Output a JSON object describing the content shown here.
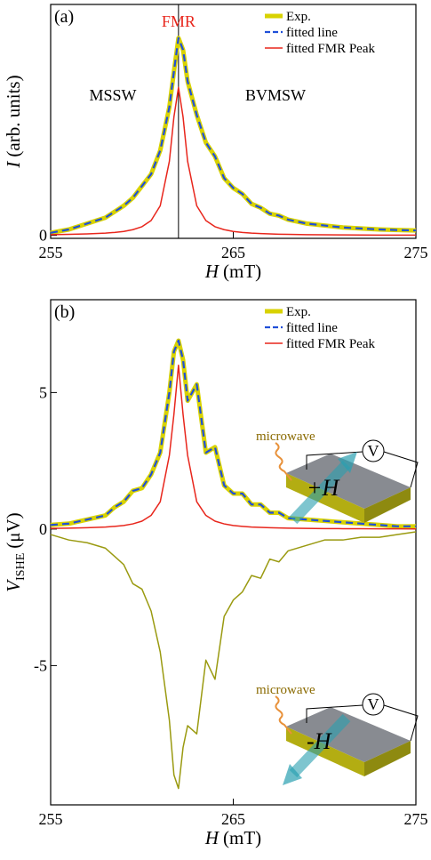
{
  "chart_data": [
    {
      "type": "line",
      "panel_label": "(a)",
      "x_label": {
        "symbol": "H",
        "unit": "(mT)"
      },
      "y_label": {
        "symbol": "I",
        "unit": "(arb. units)"
      },
      "annotations": {
        "peak": "FMR",
        "left": "MSSW",
        "right": "BVMSW"
      },
      "marker_x": 262,
      "x": [
        255,
        256,
        257,
        258,
        258.5,
        259,
        259.5,
        260,
        260.5,
        261,
        261.5,
        261.75,
        262,
        262.25,
        262.5,
        263,
        263.5,
        264,
        264.5,
        265,
        265.5,
        266,
        266.5,
        267,
        267.5,
        268,
        269,
        270,
        271,
        272,
        273,
        274,
        275
      ],
      "series": [
        {
          "name": "Exp.",
          "color": "#d8d200",
          "style": "thick",
          "values": [
            0.013,
            0.03,
            0.06,
            0.09,
            0.12,
            0.15,
            0.19,
            0.25,
            0.31,
            0.43,
            0.65,
            0.83,
            1.0,
            0.94,
            0.78,
            0.61,
            0.47,
            0.4,
            0.29,
            0.24,
            0.21,
            0.16,
            0.14,
            0.11,
            0.1,
            0.08,
            0.06,
            0.05,
            0.04,
            0.035,
            0.03,
            0.027,
            0.025
          ]
        },
        {
          "name": "fitted line",
          "color": "#1f4fd8",
          "style": "dashed",
          "values": [
            0.013,
            0.03,
            0.06,
            0.09,
            0.12,
            0.15,
            0.19,
            0.25,
            0.31,
            0.43,
            0.65,
            0.83,
            1.0,
            0.94,
            0.78,
            0.61,
            0.47,
            0.4,
            0.29,
            0.24,
            0.21,
            0.16,
            0.14,
            0.11,
            0.1,
            0.08,
            0.06,
            0.05,
            0.04,
            0.035,
            0.03,
            0.027,
            0.025
          ]
        },
        {
          "name": "fitted FMR Peak",
          "color": "#e8261c",
          "style": "solid",
          "values": [
            0.0038,
            0.005,
            0.0074,
            0.0115,
            0.015,
            0.02,
            0.029,
            0.044,
            0.075,
            0.15,
            0.375,
            0.6,
            0.75,
            0.6,
            0.375,
            0.15,
            0.075,
            0.044,
            0.029,
            0.02,
            0.015,
            0.0115,
            0.009,
            0.0074,
            0.006,
            0.005,
            0.0038,
            0.0029,
            0.0023,
            0.0019,
            0.0015,
            0.0013,
            0.0011
          ]
        }
      ],
      "xlim": [
        255,
        275
      ],
      "ylim": [
        -0.015,
        1.17
      ],
      "xticks": [
        255,
        265,
        275
      ],
      "yticks": [
        0
      ],
      "legend": "upper right"
    },
    {
      "type": "line",
      "panel_label": "(b)",
      "x_label": {
        "symbol": "H",
        "unit": "(mT)"
      },
      "y_label": {
        "symbol": "V",
        "subscript": "ISHE",
        "unit": "(μV)"
      },
      "insets": [
        {
          "wave": "microwave",
          "meter": "V",
          "field": "+H"
        },
        {
          "wave": "microwave",
          "meter": "V",
          "field": "-H"
        }
      ],
      "x": [
        255,
        256,
        257,
        258,
        258.5,
        259,
        259.5,
        260,
        260.5,
        261,
        261.5,
        261.75,
        262,
        262.25,
        262.5,
        263,
        263.5,
        264,
        264.5,
        265,
        265.5,
        266,
        266.5,
        267,
        267.5,
        268,
        269,
        270,
        271,
        272,
        273,
        274,
        275
      ],
      "series": [
        {
          "name": "Exp.",
          "color": "#d8d200",
          "style": "thick",
          "values": [
            0.15,
            0.2,
            0.35,
            0.5,
            0.8,
            1.0,
            1.4,
            1.5,
            2.0,
            2.8,
            5.0,
            6.5,
            6.9,
            6.2,
            4.7,
            5.3,
            2.8,
            3.0,
            1.6,
            1.3,
            1.3,
            0.9,
            0.9,
            0.6,
            0.6,
            0.4,
            0.35,
            0.3,
            0.25,
            0.2,
            0.15,
            0.1,
            0.1
          ]
        },
        {
          "name": "fitted line",
          "color": "#1f4fd8",
          "style": "dashed",
          "values": [
            0.15,
            0.2,
            0.35,
            0.5,
            0.8,
            1.0,
            1.4,
            1.5,
            2.0,
            2.8,
            5.0,
            6.5,
            6.9,
            6.2,
            4.7,
            5.3,
            2.8,
            3.0,
            1.6,
            1.3,
            1.3,
            0.9,
            0.9,
            0.6,
            0.6,
            0.4,
            0.35,
            0.3,
            0.25,
            0.2,
            0.15,
            0.1,
            0.1
          ]
        },
        {
          "name": "fitted FMR Peak",
          "color": "#e8261c",
          "style": "solid",
          "values": [
            0.025,
            0.034,
            0.048,
            0.075,
            0.099,
            0.13,
            0.19,
            0.29,
            0.5,
            1.0,
            2.7,
            4.2,
            6.0,
            4.2,
            2.7,
            1.0,
            0.5,
            0.29,
            0.19,
            0.13,
            0.099,
            0.075,
            0.06,
            0.048,
            0.04,
            0.034,
            0.025,
            0.019,
            0.015,
            0.012,
            0.01,
            0.0083,
            0.007
          ]
        },
        {
          "color": "#9a9a10",
          "style": "solid",
          "values": [
            -0.2,
            -0.4,
            -0.5,
            -0.7,
            -1.0,
            -1.3,
            -2.0,
            -2.2,
            -3.0,
            -4.5,
            -7.0,
            -9.0,
            -9.5,
            -8.0,
            -7.2,
            -7.5,
            -4.8,
            -5.5,
            -3.2,
            -2.6,
            -2.3,
            -1.7,
            -1.8,
            -1.1,
            -1.2,
            -0.8,
            -0.6,
            -0.4,
            -0.4,
            -0.3,
            -0.3,
            -0.2,
            -0.1
          ]
        }
      ],
      "xlim": [
        255,
        275
      ],
      "ylim": [
        -10.1,
        8.4
      ],
      "xticks": [
        255,
        265,
        275
      ],
      "yticks": [
        -5,
        0,
        5
      ],
      "legend": "upper right"
    }
  ]
}
